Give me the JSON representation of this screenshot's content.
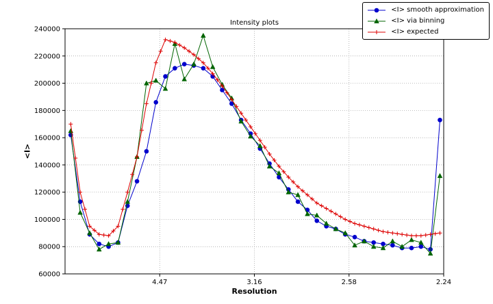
{
  "chart_data": {
    "type": "line",
    "title": "Intensity plots",
    "xlabel": "Resolution",
    "ylabel": "<I>",
    "grid": true,
    "legend_position": "upper right",
    "x_axis": {
      "range": [
        0,
        0.2
      ],
      "tick_positions": [
        0.05,
        0.1,
        0.15,
        0.2
      ],
      "tick_labels": [
        "4.47",
        "3.16",
        "2.58",
        "2.24"
      ]
    },
    "y_axis": {
      "range": [
        60000,
        240000
      ],
      "tick_values": [
        60000,
        80000,
        100000,
        120000,
        140000,
        160000,
        180000,
        200000,
        220000,
        240000
      ],
      "tick_labels": [
        "60000",
        "80000",
        "100000",
        "120000",
        "140000",
        "160000",
        "180000",
        "200000",
        "220000",
        "240000"
      ]
    },
    "x": [
      0.003,
      0.008,
      0.013,
      0.018,
      0.023,
      0.028,
      0.033,
      0.038,
      0.043,
      0.048,
      0.053,
      0.058,
      0.063,
      0.068,
      0.073,
      0.078,
      0.083,
      0.088,
      0.093,
      0.098,
      0.103,
      0.108,
      0.113,
      0.118,
      0.123,
      0.128,
      0.133,
      0.138,
      0.143,
      0.148,
      0.153,
      0.158,
      0.163,
      0.168,
      0.173,
      0.178,
      0.183,
      0.188,
      0.193,
      0.198
    ],
    "series": [
      {
        "name": "<I> smooth approximation",
        "color": "#0000cc",
        "marker": "circle",
        "values": [
          162000,
          113000,
          89000,
          82000,
          80000,
          83000,
          110000,
          128000,
          150000,
          186000,
          205000,
          211000,
          214000,
          213000,
          211000,
          205000,
          195000,
          185000,
          173000,
          163000,
          152000,
          141000,
          131000,
          122000,
          113000,
          107000,
          99000,
          95000,
          93000,
          89000,
          87000,
          84000,
          83000,
          82000,
          81000,
          79000,
          79000,
          80000,
          78000,
          173000
        ]
      },
      {
        "name": "<I> via binning",
        "color": "#006400",
        "marker": "triangle",
        "values": [
          165000,
          105000,
          90000,
          78000,
          82000,
          83000,
          113000,
          146000,
          200000,
          202000,
          196000,
          229000,
          203000,
          214000,
          235000,
          212000,
          199000,
          189000,
          172000,
          161000,
          154000,
          139000,
          134000,
          120000,
          118000,
          104000,
          103000,
          97000,
          93000,
          90000,
          81000,
          84000,
          80000,
          79000,
          84000,
          80000,
          85000,
          83000,
          75000,
          132000
        ]
      },
      {
        "name": "<I> expected",
        "color": "#dd0000",
        "marker": "plus",
        "x": [
          0.003,
          0.0055,
          0.008,
          0.0105,
          0.013,
          0.0155,
          0.018,
          0.0205,
          0.023,
          0.0255,
          0.028,
          0.0305,
          0.033,
          0.0355,
          0.038,
          0.0405,
          0.043,
          0.0455,
          0.048,
          0.0505,
          0.053,
          0.0555,
          0.058,
          0.0605,
          0.063,
          0.0655,
          0.068,
          0.0705,
          0.073,
          0.0755,
          0.078,
          0.0805,
          0.083,
          0.0855,
          0.088,
          0.0905,
          0.093,
          0.0955,
          0.098,
          0.1005,
          0.103,
          0.1055,
          0.108,
          0.1105,
          0.113,
          0.1155,
          0.118,
          0.1205,
          0.123,
          0.1255,
          0.128,
          0.1305,
          0.133,
          0.1355,
          0.138,
          0.1405,
          0.143,
          0.1455,
          0.148,
          0.1505,
          0.153,
          0.1555,
          0.158,
          0.1605,
          0.163,
          0.1655,
          0.168,
          0.1705,
          0.173,
          0.1755,
          0.178,
          0.1805,
          0.183,
          0.1855,
          0.188,
          0.1905,
          0.193,
          0.1955,
          0.198
        ],
        "values": [
          170000,
          145000,
          120000,
          107500,
          95000,
          92000,
          89000,
          88500,
          88000,
          91500,
          95000,
          107500,
          120000,
          133000,
          146000,
          165500,
          185000,
          200000,
          215000,
          223500,
          232000,
          231000,
          230000,
          228000,
          226000,
          223500,
          221000,
          218000,
          215000,
          211000,
          207000,
          202500,
          198000,
          193000,
          188000,
          183000,
          178000,
          173000,
          168000,
          163000,
          158000,
          153000,
          148000,
          143500,
          139000,
          135000,
          131000,
          127500,
          124000,
          121000,
          118000,
          115000,
          112000,
          110000,
          108000,
          106000,
          104000,
          102000,
          100000,
          98500,
          97000,
          96000,
          95000,
          94000,
          93000,
          92000,
          91000,
          90500,
          90000,
          89500,
          89000,
          88500,
          88000,
          88000,
          88000,
          88500,
          89000,
          89500,
          90000
        ]
      }
    ]
  }
}
